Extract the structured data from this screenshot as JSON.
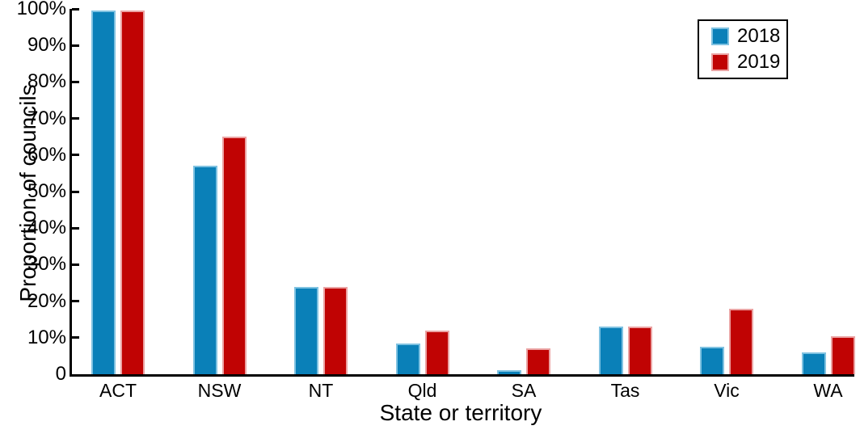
{
  "chart_data": {
    "type": "bar",
    "title": "",
    "xlabel": "State or territory",
    "ylabel": "Proportion of councils",
    "categories": [
      "ACT",
      "NSW",
      "NT",
      "Qld",
      "SA",
      "Tas",
      "Vic",
      "WA"
    ],
    "series": [
      {
        "name": "2018",
        "color": "#0a80b8",
        "edge_color": "#7fc2e1",
        "values": [
          99.5,
          57,
          24,
          8.5,
          1,
          13,
          7.5,
          6
        ]
      },
      {
        "name": "2019",
        "color": "#c00303",
        "edge_color": "#eba3a3",
        "values": [
          99.5,
          65,
          24,
          12,
          7,
          13,
          18,
          10.5
        ]
      }
    ],
    "ylim": [
      0,
      100
    ],
    "y_ticks": [
      {
        "value": 0,
        "label": "0"
      },
      {
        "value": 10,
        "label": "10%"
      },
      {
        "value": 20,
        "label": "20%"
      },
      {
        "value": 30,
        "label": "30%"
      },
      {
        "value": 40,
        "label": "40%"
      },
      {
        "value": 50,
        "label": "50%"
      },
      {
        "value": 60,
        "label": "60%"
      },
      {
        "value": 70,
        "label": "70%"
      },
      {
        "value": 80,
        "label": "80%"
      },
      {
        "value": 90,
        "label": "90%"
      },
      {
        "value": 100,
        "label": "100%"
      }
    ],
    "grid": false,
    "legend_position": "top-right",
    "bar_edge": true
  },
  "colors": {
    "axis": "#000000",
    "text": "#000000",
    "background": "#ffffff"
  }
}
